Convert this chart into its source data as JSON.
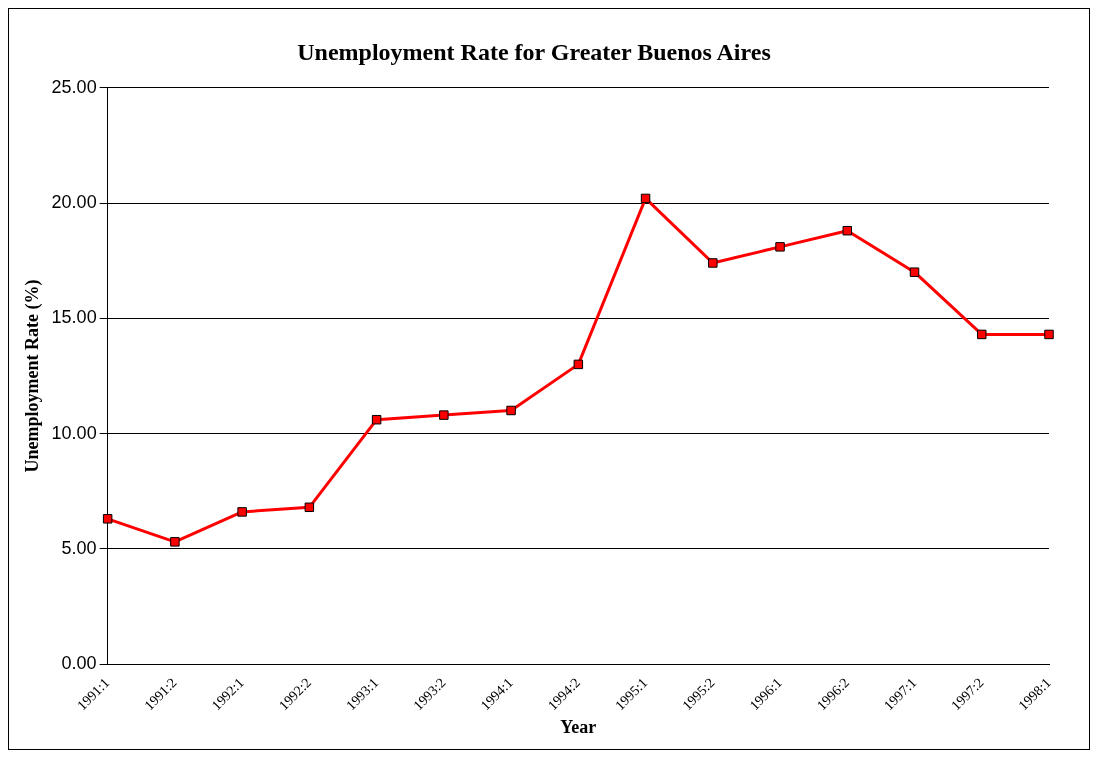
{
  "chart_data": {
    "type": "line",
    "title": "Unemployment Rate for Greater Buenos Aires",
    "xlabel": "Year",
    "ylabel": "Unemployment Rate (%)",
    "categories": [
      "1991:1",
      "1991:2",
      "1992:1",
      "1992:2",
      "1993:1",
      "1993:2",
      "1994:1",
      "1994:2",
      "1995:1",
      "1995:2",
      "1996:1",
      "1996:2",
      "1997:1",
      "1997:2",
      "1998:1"
    ],
    "series": [
      {
        "color": "#ff0000",
        "values": [
          6.3,
          5.3,
          6.6,
          6.8,
          10.6,
          10.8,
          11.0,
          13.0,
          20.2,
          17.4,
          18.1,
          18.8,
          17.0,
          14.3,
          14.3
        ]
      }
    ],
    "ylim": [
      0,
      25
    ],
    "yticks": [
      {
        "value": 0,
        "label": "0.00"
      },
      {
        "value": 5,
        "label": "5.00"
      },
      {
        "value": 10,
        "label": "10.00"
      },
      {
        "value": 15,
        "label": "15.00"
      },
      {
        "value": 20,
        "label": "20.00"
      },
      {
        "value": 25,
        "label": "25.00"
      }
    ],
    "grid": "y",
    "legend": false,
    "marker": "square",
    "line_style": "solid"
  }
}
